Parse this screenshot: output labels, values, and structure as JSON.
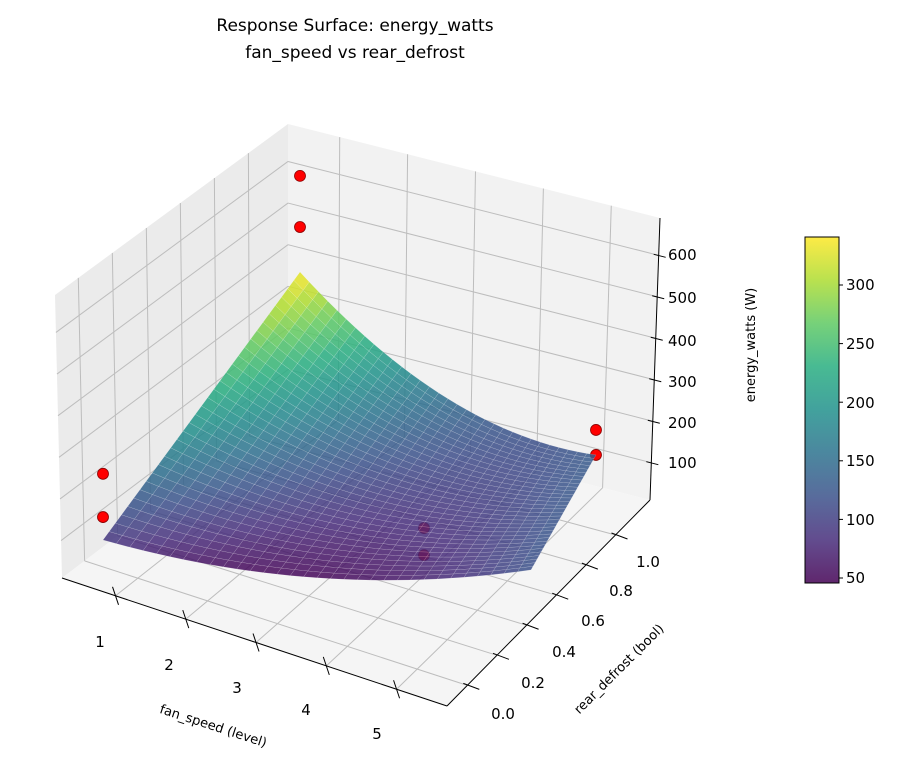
{
  "chart_data": {
    "type": "surface3d",
    "title": "Response Surface: energy_watts",
    "subtitle": "fan_speed vs rear_defrost",
    "xlabel": "fan_speed (level)",
    "ylabel": "rear_defrost (bool)",
    "zlabel": "energy_watts (W)",
    "x_ticks": [
      "1",
      "2",
      "3",
      "4",
      "5"
    ],
    "y_ticks": [
      "0.0",
      "0.2",
      "0.4",
      "0.6",
      "0.8",
      "1.0"
    ],
    "z_ticks": [
      "100",
      "200",
      "300",
      "400",
      "500",
      "600"
    ],
    "grid": true,
    "colormap": "viridis",
    "colorbar": {
      "min": 45,
      "max": 340,
      "ticks": [
        "50",
        "100",
        "150",
        "200",
        "250",
        "300"
      ]
    },
    "surface": {
      "x": [
        1,
        2,
        3,
        4,
        5
      ],
      "y": [
        0,
        0.25,
        0.5,
        0.75,
        1
      ],
      "z": [
        [
          90,
          56.3,
          50,
          71.3,
          120
        ],
        [
          152.5,
          98.2,
          75,
          83.1,
          122.5
        ],
        [
          215,
          140,
          100,
          95,
          125
        ],
        [
          277.5,
          181.9,
          125,
          106.9,
          127.5
        ],
        [
          340,
          223.8,
          150,
          118.8,
          130
        ]
      ]
    },
    "points": {
      "color": "#ff0000",
      "data": [
        {
          "x": 1,
          "y": 0,
          "z": 249
        },
        {
          "x": 1,
          "y": 0,
          "z": 145
        },
        {
          "x": 1,
          "y": 1,
          "z": 571
        },
        {
          "x": 1,
          "y": 1,
          "z": 448
        },
        {
          "x": 4,
          "y": 0,
          "z": 195
        },
        {
          "x": 4,
          "y": 0,
          "z": 130
        },
        {
          "x": 5,
          "y": 1,
          "z": 190
        },
        {
          "x": 5,
          "y": 1,
          "z": 130
        }
      ]
    }
  }
}
